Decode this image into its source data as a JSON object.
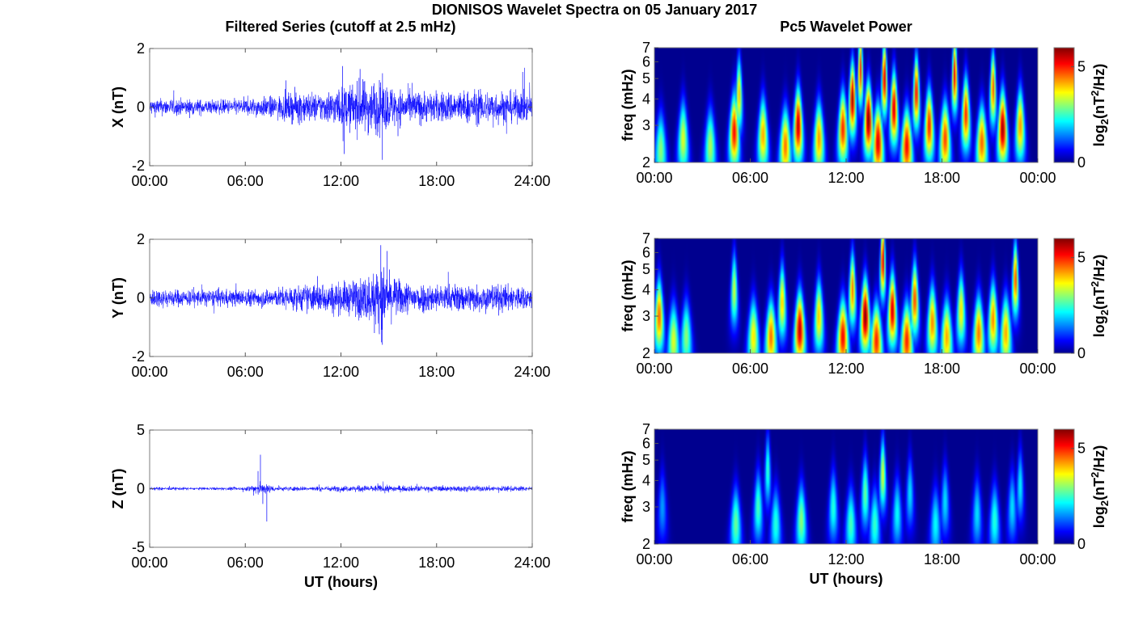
{
  "figure": {
    "title": "DIONISOS Wavelet Spectra on 05 January 2017",
    "left_title": "Filtered Series (cutoff at 2.5 mHz)",
    "right_title": "Pc5 Wavelet Power",
    "trace_color": "#0000ff"
  },
  "chart_data": [
    {
      "type": "line",
      "component": "X",
      "ylabel": "X (nT)",
      "xlabel": "",
      "xlim_hours": [
        0,
        24
      ],
      "ylim": [
        -2,
        2
      ],
      "yticks": [
        "2",
        "0",
        "-2"
      ],
      "xticks": [
        "00:00",
        "06:00",
        "12:00",
        "18:00",
        "24:00"
      ],
      "envelope": {
        "x_hours": [
          0,
          2,
          4,
          6,
          8,
          9.5,
          10.5,
          12,
          13,
          14,
          15,
          16,
          18,
          20,
          22,
          24
        ],
        "amp": [
          0.3,
          0.3,
          0.25,
          0.3,
          0.4,
          0.6,
          0.5,
          0.7,
          0.9,
          1.0,
          0.8,
          0.6,
          0.55,
          0.6,
          0.6,
          0.5
        ]
      },
      "extremes": [
        {
          "x": 12.1,
          "y": 1.4
        },
        {
          "x": 12.2,
          "y": -1.6
        },
        {
          "x": 14.6,
          "y": -1.8
        },
        {
          "x": 13.2,
          "y": 1.3
        },
        {
          "x": 23.4,
          "y": 1.2
        }
      ]
    },
    {
      "type": "line",
      "component": "Y",
      "ylabel": "Y (nT)",
      "xlabel": "",
      "xlim_hours": [
        0,
        24
      ],
      "ylim": [
        -2,
        2
      ],
      "yticks": [
        "2",
        "0",
        "-2"
      ],
      "xticks": [
        "00:00",
        "06:00",
        "12:00",
        "18:00",
        "24:00"
      ],
      "envelope": {
        "x_hours": [
          0,
          2,
          4,
          6,
          8,
          10,
          12,
          13,
          14,
          14.5,
          15,
          16,
          18,
          20,
          22,
          24
        ],
        "amp": [
          0.35,
          0.3,
          0.3,
          0.3,
          0.35,
          0.5,
          0.55,
          0.7,
          0.9,
          1.2,
          0.8,
          0.6,
          0.5,
          0.5,
          0.5,
          0.4
        ]
      },
      "extremes": [
        {
          "x": 14.5,
          "y": 1.8
        },
        {
          "x": 14.9,
          "y": 1.6
        },
        {
          "x": 14.6,
          "y": -1.6
        },
        {
          "x": 14.1,
          "y": -1.2
        }
      ]
    },
    {
      "type": "line",
      "component": "Z",
      "ylabel": "Z (nT)",
      "xlabel": "UT (hours)",
      "xlim_hours": [
        0,
        24
      ],
      "ylim": [
        -5,
        5
      ],
      "yticks": [
        "5",
        "0",
        "-5"
      ],
      "xticks": [
        "00:00",
        "06:00",
        "12:00",
        "18:00",
        "24:00"
      ],
      "envelope": {
        "x_hours": [
          0,
          3,
          6,
          6.7,
          7,
          7.4,
          8,
          10,
          12,
          14,
          15,
          16,
          18,
          20,
          22,
          24
        ],
        "amp": [
          0.15,
          0.12,
          0.15,
          0.6,
          0.5,
          0.4,
          0.2,
          0.2,
          0.25,
          0.3,
          0.3,
          0.25,
          0.25,
          0.25,
          0.25,
          0.2
        ]
      },
      "extremes": [
        {
          "x": 6.95,
          "y": 2.9
        },
        {
          "x": 7.35,
          "y": -2.8
        },
        {
          "x": 7.1,
          "y": -1.3
        },
        {
          "x": 6.8,
          "y": 1.5
        }
      ]
    },
    {
      "type": "heatmap",
      "component": "X",
      "ylabel": "freq (mHz)",
      "xlabel": "",
      "xlim_hours": [
        0,
        24
      ],
      "ylim_mhz": [
        2,
        7
      ],
      "yscale": "log",
      "yticks": [
        "7",
        "6",
        "5",
        "4",
        "3",
        "2"
      ],
      "xticks": [
        "00:00",
        "06:00",
        "12:00",
        "18:00",
        "00:00"
      ],
      "colorbar": {
        "label": "log2(nT2/Hz)",
        "range": [
          0,
          6
        ],
        "ticks": [
          "5",
          "0"
        ]
      },
      "peaks": [
        {
          "t": 0.4,
          "f": 2.3,
          "p": 3.0
        },
        {
          "t": 1.8,
          "f": 2.6,
          "p": 3.5
        },
        {
          "t": 3.5,
          "f": 2.4,
          "p": 3.2
        },
        {
          "t": 5.0,
          "f": 2.8,
          "p": 5.2
        },
        {
          "t": 5.3,
          "f": 4.2,
          "p": 4.0
        },
        {
          "t": 6.8,
          "f": 2.7,
          "p": 4.2
        },
        {
          "t": 8.2,
          "f": 2.4,
          "p": 4.5
        },
        {
          "t": 9.0,
          "f": 3.0,
          "p": 5.6
        },
        {
          "t": 10.3,
          "f": 2.6,
          "p": 4.3
        },
        {
          "t": 11.8,
          "f": 2.9,
          "p": 5.0
        },
        {
          "t": 12.4,
          "f": 4.0,
          "p": 5.8
        },
        {
          "t": 12.9,
          "f": 5.5,
          "p": 5.0
        },
        {
          "t": 13.4,
          "f": 3.2,
          "p": 6.0
        },
        {
          "t": 14.0,
          "f": 2.5,
          "p": 5.4
        },
        {
          "t": 14.4,
          "f": 5.0,
          "p": 5.5
        },
        {
          "t": 15.0,
          "f": 3.6,
          "p": 5.5
        },
        {
          "t": 15.8,
          "f": 2.4,
          "p": 5.2
        },
        {
          "t": 16.4,
          "f": 4.3,
          "p": 5.2
        },
        {
          "t": 17.2,
          "f": 3.0,
          "p": 5.0
        },
        {
          "t": 18.2,
          "f": 2.6,
          "p": 4.8
        },
        {
          "t": 18.8,
          "f": 5.2,
          "p": 5.3
        },
        {
          "t": 19.5,
          "f": 3.4,
          "p": 5.0
        },
        {
          "t": 20.5,
          "f": 2.5,
          "p": 4.6
        },
        {
          "t": 21.2,
          "f": 4.5,
          "p": 4.7
        },
        {
          "t": 21.8,
          "f": 2.9,
          "p": 5.8
        },
        {
          "t": 22.9,
          "f": 3.0,
          "p": 4.3
        }
      ]
    },
    {
      "type": "heatmap",
      "component": "Y",
      "ylabel": "freq (mHz)",
      "xlabel": "",
      "xlim_hours": [
        0,
        24
      ],
      "ylim_mhz": [
        2,
        7
      ],
      "yscale": "log",
      "yticks": [
        "7",
        "6",
        "5",
        "4",
        "3",
        "2"
      ],
      "xticks": [
        "00:00",
        "06:00",
        "12:00",
        "18:00",
        "00:00"
      ],
      "colorbar": {
        "label": "log2(nT2/Hz)",
        "range": [
          0,
          6
        ],
        "ticks": [
          "5",
          "0"
        ]
      },
      "peaks": [
        {
          "t": 0.3,
          "f": 3.0,
          "p": 4.6
        },
        {
          "t": 1.2,
          "f": 2.3,
          "p": 3.5
        },
        {
          "t": 2.0,
          "f": 2.4,
          "p": 3.0
        },
        {
          "t": 5.0,
          "f": 4.0,
          "p": 3.4
        },
        {
          "t": 6.2,
          "f": 2.4,
          "p": 3.8
        },
        {
          "t": 7.3,
          "f": 2.4,
          "p": 4.5
        },
        {
          "t": 8.0,
          "f": 3.5,
          "p": 4.0
        },
        {
          "t": 9.1,
          "f": 2.6,
          "p": 5.6
        },
        {
          "t": 10.3,
          "f": 3.0,
          "p": 4.0
        },
        {
          "t": 11.8,
          "f": 2.4,
          "p": 5.2
        },
        {
          "t": 12.4,
          "f": 4.0,
          "p": 4.5
        },
        {
          "t": 13.2,
          "f": 3.0,
          "p": 6.0
        },
        {
          "t": 13.9,
          "f": 2.3,
          "p": 5.0
        },
        {
          "t": 14.3,
          "f": 5.5,
          "p": 5.5
        },
        {
          "t": 14.9,
          "f": 3.2,
          "p": 5.5
        },
        {
          "t": 15.8,
          "f": 2.3,
          "p": 5.0
        },
        {
          "t": 16.3,
          "f": 3.6,
          "p": 4.8
        },
        {
          "t": 17.4,
          "f": 2.8,
          "p": 4.4
        },
        {
          "t": 18.3,
          "f": 2.4,
          "p": 4.2
        },
        {
          "t": 19.2,
          "f": 3.2,
          "p": 3.8
        },
        {
          "t": 20.3,
          "f": 2.5,
          "p": 4.5
        },
        {
          "t": 21.2,
          "f": 2.9,
          "p": 4.4
        },
        {
          "t": 22.0,
          "f": 2.5,
          "p": 4.2
        },
        {
          "t": 22.6,
          "f": 4.5,
          "p": 4.8
        }
      ]
    },
    {
      "type": "heatmap",
      "component": "Z",
      "ylabel": "freq (mHz)",
      "xlabel": "UT (hours)",
      "xlim_hours": [
        0,
        24
      ],
      "ylim_mhz": [
        2,
        7
      ],
      "yscale": "log",
      "yticks": [
        "7",
        "6",
        "5",
        "4",
        "3",
        "2"
      ],
      "xticks": [
        "00:00",
        "06:00",
        "12:00",
        "18:00",
        "00:00"
      ],
      "colorbar": {
        "label": "log2(nT2/Hz)",
        "range": [
          0,
          6
        ],
        "ticks": [
          "5",
          "0"
        ]
      },
      "peaks": [
        {
          "t": 0.5,
          "f": 3.0,
          "p": 1.6
        },
        {
          "t": 5.1,
          "f": 2.5,
          "p": 2.8
        },
        {
          "t": 6.5,
          "f": 3.0,
          "p": 2.6
        },
        {
          "t": 7.1,
          "f": 4.5,
          "p": 2.5
        },
        {
          "t": 7.6,
          "f": 2.5,
          "p": 2.4
        },
        {
          "t": 9.2,
          "f": 2.6,
          "p": 3.0
        },
        {
          "t": 11.2,
          "f": 3.0,
          "p": 2.4
        },
        {
          "t": 12.3,
          "f": 2.5,
          "p": 2.6
        },
        {
          "t": 13.2,
          "f": 3.5,
          "p": 2.8
        },
        {
          "t": 13.8,
          "f": 2.5,
          "p": 2.5
        },
        {
          "t": 14.3,
          "f": 4.3,
          "p": 3.5
        },
        {
          "t": 15.2,
          "f": 2.8,
          "p": 2.2
        },
        {
          "t": 16.0,
          "f": 3.5,
          "p": 2.0
        },
        {
          "t": 17.6,
          "f": 2.5,
          "p": 2.2
        },
        {
          "t": 18.2,
          "f": 3.2,
          "p": 2.0
        },
        {
          "t": 20.2,
          "f": 2.8,
          "p": 2.0
        },
        {
          "t": 21.3,
          "f": 2.6,
          "p": 2.4
        },
        {
          "t": 22.4,
          "f": 3.0,
          "p": 2.0
        },
        {
          "t": 22.9,
          "f": 3.8,
          "p": 2.1
        }
      ]
    }
  ]
}
